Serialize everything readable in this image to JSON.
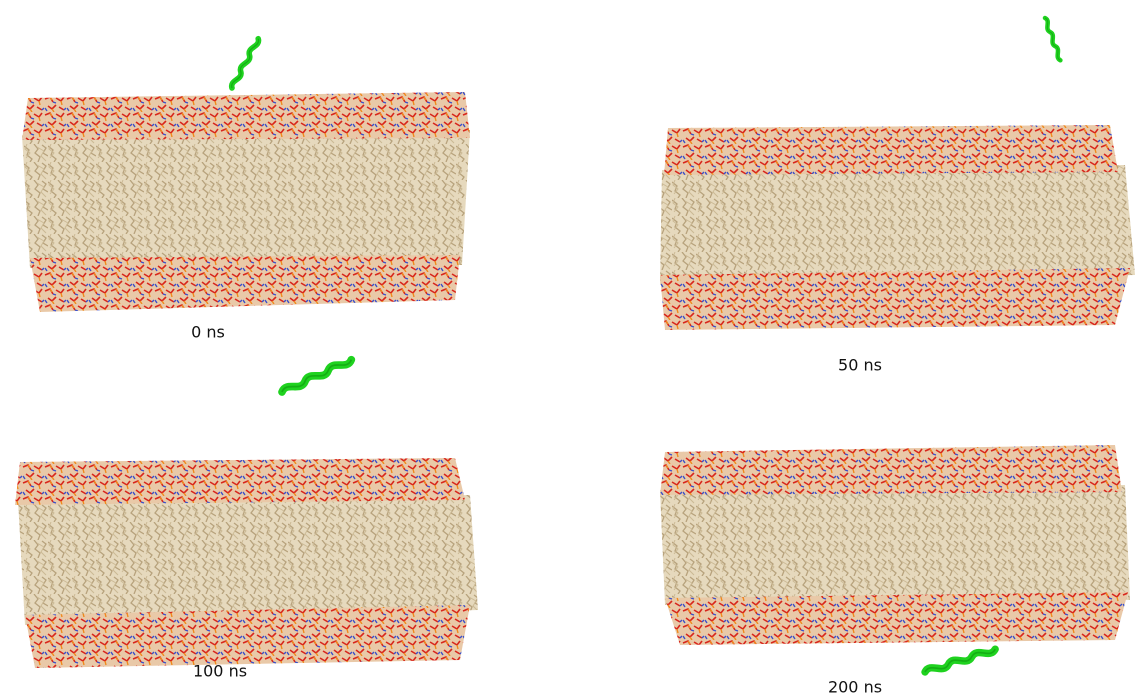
{
  "panels": [
    {
      "label": "0 ns"
    },
    {
      "label": "50 ns"
    },
    {
      "label": "100 ns"
    },
    {
      "label": "200 ns"
    }
  ]
}
